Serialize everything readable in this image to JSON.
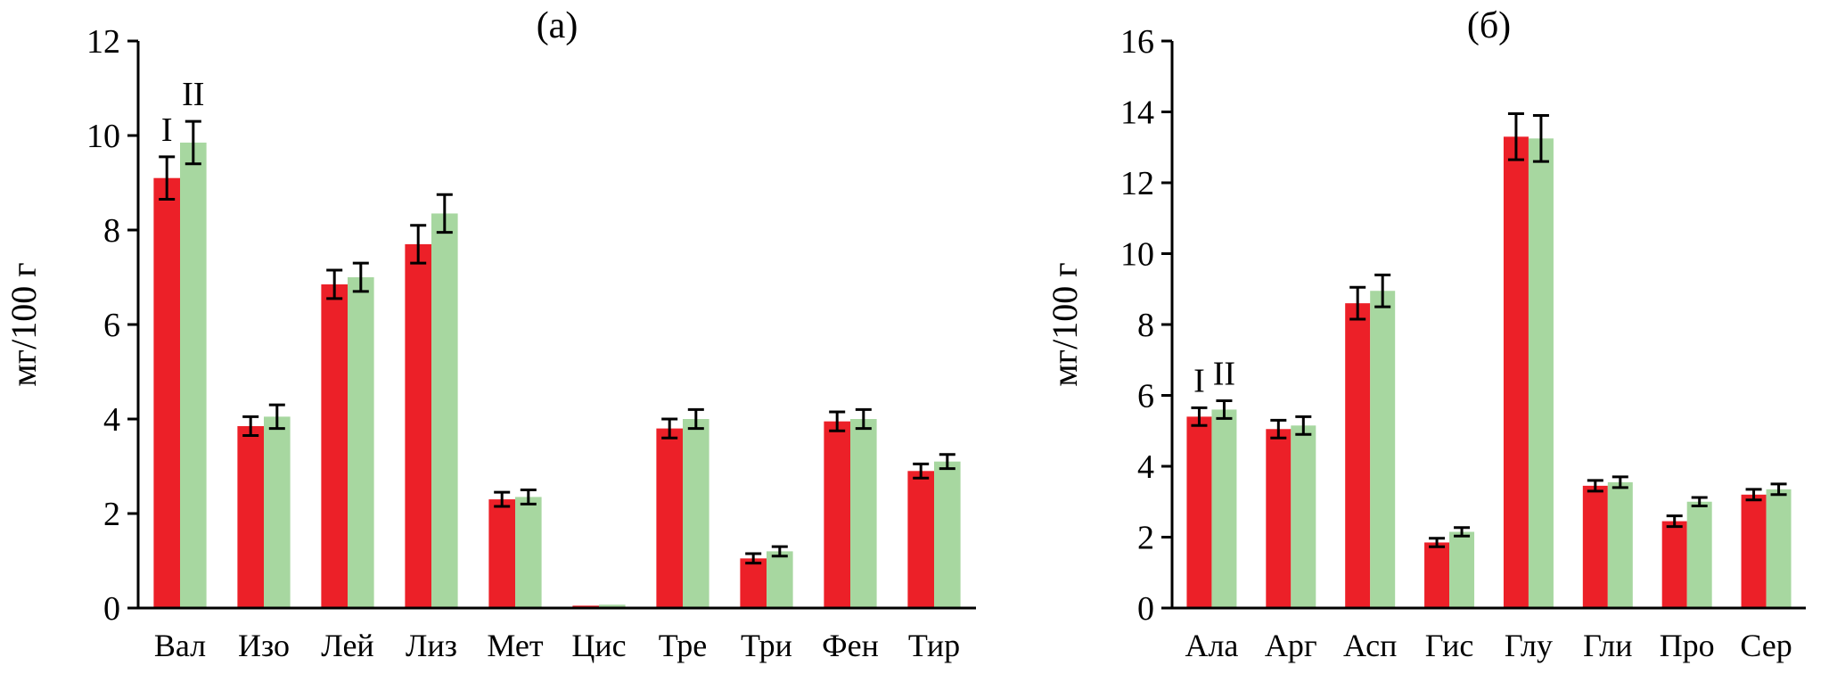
{
  "figure": {
    "background": "#ffffff",
    "series_colors": {
      "I": "#ec2028",
      "II": "#a7d7a0"
    },
    "error_bar_color": "#000000",
    "axis_color": "#000000"
  },
  "chart_data": [
    {
      "type": "bar",
      "title": "(а)",
      "xlabel": "",
      "ylabel": "мг/100 г",
      "ylim": [
        0,
        12
      ],
      "ytick_step": 2,
      "grid": false,
      "legend_position": "none",
      "categories": [
        "Вал",
        "Изо",
        "Лей",
        "Лиз",
        "Мет",
        "Цис",
        "Тре",
        "Три",
        "Фен",
        "Тир"
      ],
      "series": [
        {
          "name": "I",
          "color": "#ec2028",
          "values": [
            9.1,
            3.85,
            6.85,
            7.7,
            2.3,
            0.05,
            3.8,
            1.05,
            3.95,
            2.9
          ],
          "errors": [
            0.45,
            0.2,
            0.3,
            0.4,
            0.15,
            0,
            0.2,
            0.1,
            0.2,
            0.15
          ]
        },
        {
          "name": "II",
          "color": "#a7d7a0",
          "values": [
            9.85,
            4.05,
            7.0,
            8.35,
            2.35,
            0.07,
            4.0,
            1.2,
            4.0,
            3.1
          ],
          "errors": [
            0.45,
            0.25,
            0.3,
            0.4,
            0.15,
            0,
            0.2,
            0.1,
            0.2,
            0.15
          ]
        }
      ],
      "series_markers": {
        "texts": [
          "I",
          "II"
        ],
        "category_index": 0
      }
    },
    {
      "type": "bar",
      "title": "(б)",
      "xlabel": "",
      "ylabel": "мг/100 г",
      "ylim": [
        0,
        16
      ],
      "ytick_step": 2,
      "grid": false,
      "legend_position": "none",
      "categories": [
        "Ала",
        "Арг",
        "Асп",
        "Гис",
        "Глу",
        "Гли",
        "Про",
        "Сер"
      ],
      "series": [
        {
          "name": "I",
          "color": "#ec2028",
          "values": [
            5.4,
            5.05,
            8.6,
            1.85,
            13.3,
            3.45,
            2.45,
            3.2
          ],
          "errors": [
            0.25,
            0.25,
            0.45,
            0.12,
            0.65,
            0.15,
            0.15,
            0.15
          ]
        },
        {
          "name": "II",
          "color": "#a7d7a0",
          "values": [
            5.6,
            5.15,
            8.95,
            2.15,
            13.25,
            3.55,
            3.0,
            3.35
          ],
          "errors": [
            0.25,
            0.25,
            0.45,
            0.12,
            0.65,
            0.15,
            0.12,
            0.15
          ]
        }
      ],
      "series_markers": {
        "texts": [
          "I",
          "II"
        ],
        "category_index": 0
      }
    }
  ]
}
